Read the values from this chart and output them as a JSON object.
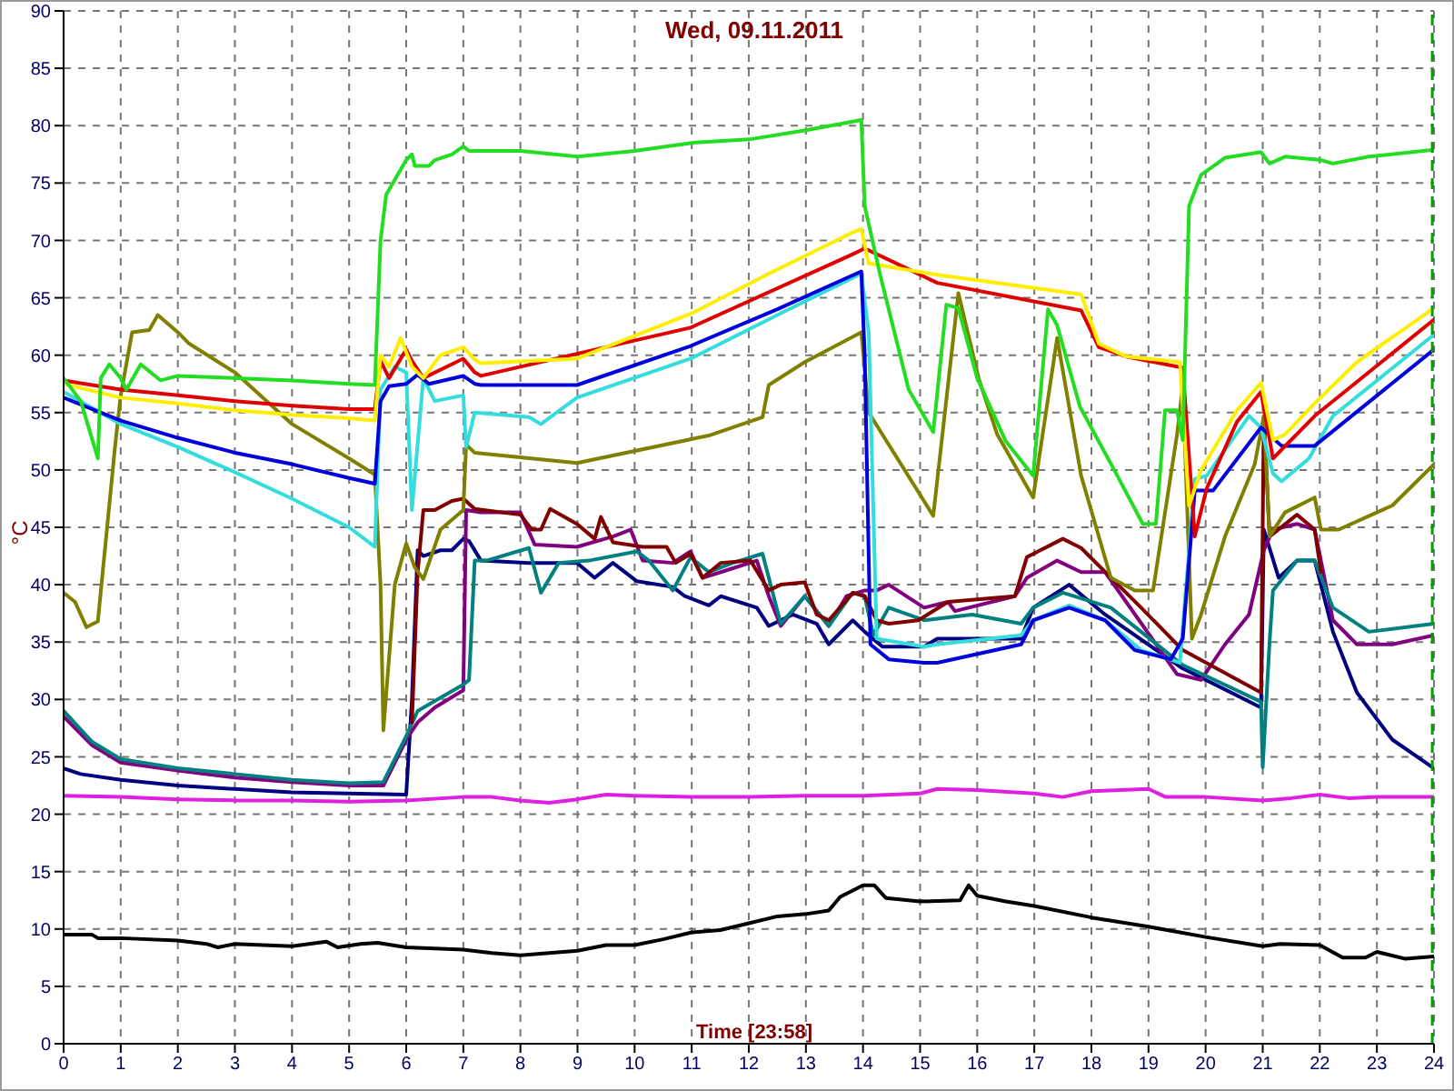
{
  "chart_data": {
    "type": "line",
    "title": "Wed, 09.11.2011",
    "xlabel": "Time [23:58]",
    "ylabel": "°C",
    "xlim": [
      0,
      24
    ],
    "xticks": [
      0,
      1,
      2,
      3,
      4,
      5,
      6,
      7,
      8,
      9,
      10,
      11,
      12,
      13,
      14,
      15,
      16,
      17,
      18,
      19,
      20,
      21,
      22,
      23,
      24
    ],
    "ylim": [
      0,
      90
    ],
    "yticks": [
      0,
      5,
      10,
      15,
      20,
      25,
      30,
      35,
      40,
      45,
      50,
      55,
      60,
      65,
      70,
      75,
      80,
      85,
      90
    ],
    "grid": true,
    "ref_lines": [
      {
        "axis": "x",
        "value": 23.97,
        "color": "#00a000",
        "line_style": "dashed"
      }
    ],
    "series": [
      {
        "color": "#000000",
        "x": [
          0,
          0.5,
          0.6,
          1,
          2,
          2.5,
          2.7,
          3,
          3.5,
          4,
          4.6,
          4.8,
          5.2,
          5.5,
          6,
          7,
          7.5,
          8,
          8.5,
          9,
          9.5,
          10,
          10.5,
          11,
          11.5,
          12,
          12.5,
          13,
          13.4,
          13.6,
          14,
          14.2,
          14.4,
          15,
          15.7,
          15.85,
          16,
          16.5,
          17,
          18,
          19,
          20,
          21,
          21.3,
          22,
          22.4,
          22.8,
          23,
          23.5,
          24
        ],
        "values": [
          9.5,
          9.5,
          9.2,
          9.2,
          9,
          8.7,
          8.4,
          8.7,
          8.6,
          8.5,
          8.9,
          8.4,
          8.7,
          8.8,
          8.4,
          8.2,
          7.9,
          7.7,
          7.9,
          8.1,
          8.6,
          8.6,
          9.1,
          9.7,
          9.9,
          10.5,
          11.1,
          11.3,
          11.6,
          12.8,
          13.8,
          13.8,
          12.7,
          12.4,
          12.5,
          13.8,
          12.9,
          12.4,
          12,
          11,
          10.2,
          9.3,
          8.5,
          8.7,
          8.6,
          7.5,
          7.5,
          8,
          7.4,
          7.6
        ]
      },
      {
        "color": "#e020e0",
        "x": [
          0,
          1,
          2,
          3,
          4,
          5,
          6,
          7,
          7.5,
          8,
          8.5,
          9,
          9.5,
          10,
          11,
          12,
          13,
          14,
          15,
          15.3,
          16,
          17,
          17.5,
          18,
          19,
          19.3,
          20,
          21,
          21.5,
          22,
          22.5,
          23,
          24
        ],
        "values": [
          21.6,
          21.5,
          21.3,
          21.2,
          21.2,
          21.1,
          21.2,
          21.5,
          21.5,
          21.2,
          21,
          21.3,
          21.7,
          21.6,
          21.5,
          21.5,
          21.6,
          21.6,
          21.8,
          22.2,
          22.1,
          21.8,
          21.5,
          22,
          22.2,
          21.5,
          21.5,
          21.2,
          21.4,
          21.7,
          21.4,
          21.5,
          21.5
        ]
      },
      {
        "color": "#000080",
        "x": [
          0,
          0.3,
          1,
          2,
          3,
          4,
          5,
          6.0,
          6.1,
          6.2,
          6.3,
          6.6,
          6.8,
          7.0,
          7.1,
          7.31,
          8.15,
          8.99,
          9.3,
          9.62,
          10.04,
          10.67,
          10.88,
          11.3,
          11.51,
          12.14,
          12.35,
          12.77,
          13.19,
          13.4,
          13.82,
          14.03,
          14.34,
          15.07,
          15.3,
          16.77,
          16.98,
          17.61,
          18.24,
          19.6,
          20.97,
          21.02,
          21.28,
          21.6,
          21.91,
          22.23,
          22.65,
          23.27,
          24
        ],
        "values": [
          24,
          23.5,
          23,
          22.5,
          22.2,
          21.9,
          21.8,
          21.7,
          30,
          43,
          42.5,
          43,
          43,
          44,
          43.8,
          42.1,
          41.9,
          41.9,
          40.6,
          41.9,
          40.3,
          39.8,
          39,
          38.2,
          39,
          38,
          36.4,
          37.4,
          36.6,
          34.8,
          36.9,
          35.9,
          34.6,
          34.6,
          35.3,
          35.3,
          38,
          40,
          37.4,
          32.7,
          29.3,
          44.8,
          40.6,
          42.1,
          42.1,
          35.9,
          30.6,
          26.5,
          24
        ]
      },
      {
        "color": "#800080",
        "x": [
          0,
          0.5,
          1,
          2,
          3,
          4,
          5,
          5.6,
          6.0,
          6.2,
          6.5,
          7,
          7.05,
          7.3,
          8.0,
          8.25,
          8.99,
          9.62,
          9.93,
          10.14,
          10.67,
          10.98,
          11.19,
          11.51,
          12.14,
          12.35,
          12.56,
          12.98,
          13.4,
          13.71,
          14.03,
          14.24,
          14.45,
          15.07,
          15.49,
          15.61,
          16.66,
          16.87,
          17.4,
          17.82,
          18.24,
          19.5,
          19.92,
          20.34,
          20.76,
          21.02,
          21.18,
          21.6,
          21.91,
          22.23,
          22.65,
          23.27,
          24
        ],
        "values": [
          28.5,
          26,
          24.5,
          23.8,
          23.2,
          22.8,
          22.5,
          22.5,
          26.5,
          28,
          29.3,
          30.8,
          46.5,
          46.3,
          46.3,
          43.5,
          43.3,
          44.2,
          44.8,
          42.1,
          41.9,
          42.9,
          40.6,
          41.1,
          42.1,
          39,
          36.4,
          39,
          36.4,
          39,
          39.5,
          39.5,
          40,
          38,
          38.5,
          37.7,
          39,
          40.6,
          42.1,
          41.1,
          41.1,
          32.2,
          31.7,
          34.8,
          37.4,
          43,
          44.8,
          45.3,
          44.8,
          36.9,
          34.8,
          34.8,
          35.6
        ]
      },
      {
        "color": "#008080",
        "x": [
          0,
          0.5,
          1,
          2,
          3,
          4,
          5,
          5.6,
          6.0,
          6.2,
          7,
          7.1,
          7.2,
          7.41,
          8.15,
          8.36,
          8.67,
          9.2,
          10.04,
          10.25,
          10.67,
          10.98,
          11.3,
          11.72,
          12.24,
          12.56,
          12.98,
          13.4,
          13.82,
          14.03,
          14.18,
          14.45,
          15.07,
          15.91,
          16.77,
          16.98,
          17.5,
          18.34,
          19.6,
          20.97,
          21.0,
          21.12,
          21.18,
          21.6,
          21.91,
          22.23,
          22.86,
          24
        ],
        "values": [
          29,
          26.3,
          24.8,
          24,
          23.5,
          23,
          22.7,
          22.8,
          26.8,
          29,
          31.3,
          31.7,
          42.1,
          42.1,
          43.2,
          39.3,
          41.9,
          42.1,
          42.9,
          42.1,
          39.5,
          42.4,
          41.1,
          41.9,
          42.7,
          36.6,
          39,
          36.4,
          39.3,
          39,
          35.6,
          38,
          36.9,
          37.4,
          36.6,
          38,
          39.3,
          38,
          33,
          29.8,
          24.1,
          35,
          39.5,
          42.1,
          42.1,
          38,
          35.9,
          36.6
        ]
      },
      {
        "color": "#800000",
        "x": [
          6.1,
          6.2,
          6.3,
          6.5,
          6.8,
          7.0,
          7.2,
          8.0,
          8.2,
          8.36,
          8.52,
          8.99,
          9.3,
          9.41,
          9.62,
          10.14,
          10.56,
          10.72,
          10.98,
          11.19,
          11.51,
          12.03,
          12.35,
          12.56,
          12.98,
          13.19,
          13.4,
          13.82,
          14.03,
          14.24,
          14.45,
          14.97,
          15.49,
          16.66,
          16.87,
          17.5,
          17.82,
          18.87,
          19.6,
          20.97,
          21.02,
          21.12,
          21.6,
          21.91,
          22.02
        ],
        "values": [
          28,
          41,
          46.5,
          46.5,
          47.3,
          47.5,
          46.6,
          46.1,
          44.8,
          44.8,
          46.6,
          45.3,
          44,
          45.9,
          43.7,
          43.3,
          43.3,
          41.9,
          42.7,
          40.6,
          41.9,
          42.1,
          39.5,
          40,
          40.2,
          37.4,
          36.9,
          39.3,
          39,
          36.9,
          36.6,
          36.9,
          38.5,
          39,
          42.4,
          44,
          43.2,
          38,
          34.3,
          30.6,
          54.7,
          44.2,
          46.1,
          44.8,
          41.1
        ]
      },
      {
        "color": "#808000",
        "x": [
          0,
          0.2,
          0.4,
          0.6,
          0.9,
          1.0,
          1.2,
          1.5,
          1.65,
          2,
          2.2,
          3,
          4,
          5,
          5.45,
          5.55,
          5.6,
          5.8,
          6.0,
          6.15,
          6.3,
          6.6,
          7.0,
          7.05,
          7.2,
          8.99,
          11.3,
          12.24,
          12.35,
          12.98,
          13.82,
          13.97,
          14.1,
          15.23,
          15.67,
          16.03,
          16.35,
          16.98,
          17.4,
          17.82,
          18.34,
          18.76,
          19.08,
          19.5,
          19.6,
          19.76,
          19.92,
          20.34,
          20.86,
          21.02,
          21.12,
          21.39,
          21.91,
          22.02,
          22.33,
          23.27,
          24
        ],
        "values": [
          39.3,
          38.5,
          36.3,
          36.8,
          52,
          56.5,
          62,
          62.2,
          63.5,
          62,
          61,
          58.5,
          54,
          51,
          49.6,
          40,
          27.3,
          40,
          43.6,
          41.5,
          40.5,
          44.8,
          46.5,
          52.2,
          51.5,
          50.6,
          53,
          54.6,
          57.4,
          59.4,
          61.6,
          62,
          55,
          46,
          65.4,
          57.9,
          53.1,
          47.6,
          61.5,
          49.5,
          40.6,
          39.5,
          39.5,
          53.1,
          57.3,
          35.3,
          37.4,
          44.2,
          50.5,
          54.7,
          44.2,
          46.3,
          47.6,
          44.8,
          44.8,
          46.9,
          50.5
        ]
      },
      {
        "color": "#33dddd",
        "x": [
          0,
          1,
          2,
          3,
          4,
          5,
          5.45,
          5.55,
          5.8,
          6.0,
          6.1,
          6.3,
          6.5,
          7,
          7.05,
          7.2,
          8.15,
          8.36,
          8.99,
          10.98,
          12.5,
          13.97,
          14.1,
          14.24,
          15.07,
          15.3,
          16.77,
          16.98,
          17.61,
          18.24,
          18.87,
          19.55,
          19.81,
          20.02,
          20.76,
          20.97,
          21.18,
          21.33,
          21.81,
          22.23,
          24
        ],
        "values": [
          56.8,
          54,
          52,
          49.8,
          47.5,
          45,
          43.3,
          57,
          59,
          58.5,
          46.5,
          58,
          56,
          56.5,
          52,
          55,
          54.6,
          54,
          56.3,
          59.7,
          63.5,
          67.1,
          62,
          35.3,
          34.6,
          34.8,
          35.6,
          36.9,
          38.2,
          36.9,
          34.3,
          33.2,
          49.2,
          49.5,
          54.7,
          53.7,
          49.7,
          49,
          51,
          54.7,
          61.8
        ]
      },
      {
        "color": "#0000dd",
        "x": [
          0,
          1,
          2,
          3,
          4,
          5,
          5.45,
          5.55,
          5.7,
          6,
          6.2,
          6.4,
          7,
          7.2,
          7.31,
          8.99,
          10.98,
          12.5,
          13.97,
          14.03,
          14.13,
          14.45,
          15.07,
          15.3,
          16.77,
          16.98,
          17.61,
          18.24,
          18.76,
          19.39,
          19.6,
          19.81,
          20.13,
          20.97,
          21.33,
          21.91,
          24
        ],
        "values": [
          56.3,
          54.3,
          52.8,
          51.5,
          50.5,
          49.3,
          48.8,
          56,
          57.3,
          57.5,
          58.3,
          57.5,
          58.2,
          57.5,
          57.4,
          57.4,
          60.8,
          64,
          67.3,
          60,
          34.8,
          33.5,
          33.2,
          33.2,
          34.8,
          36.9,
          38,
          36.9,
          34.3,
          33.5,
          35.3,
          48.2,
          48.2,
          53.7,
          52.1,
          52.1,
          60.5
        ]
      },
      {
        "color": "#e00000",
        "x": [
          0,
          1,
          2,
          3,
          4,
          5,
          5.45,
          5.55,
          5.7,
          6,
          6.1,
          6.3,
          7,
          7.2,
          7.31,
          10.98,
          13.82,
          14.03,
          15.3,
          17.82,
          18.13,
          18.6,
          19.6,
          19.81,
          20.02,
          20.55,
          20.97,
          21.18,
          21.91,
          24
        ],
        "values": [
          57.8,
          57,
          56.5,
          56,
          55.6,
          55.3,
          55.3,
          59.5,
          58,
          60.5,
          59.5,
          58,
          59.7,
          58.5,
          58.2,
          62.4,
          68.8,
          69.3,
          66.3,
          63.9,
          60.7,
          59.9,
          58.9,
          44.2,
          48.4,
          54.2,
          56.8,
          51,
          54.7,
          63.1
        ]
      },
      {
        "color": "#ffee00",
        "x": [
          0,
          1,
          2,
          3,
          4,
          5,
          5.45,
          5.55,
          5.7,
          5.9,
          6.1,
          6.3,
          6.6,
          7,
          7.2,
          7.31,
          8.99,
          10.98,
          12.35,
          13.82,
          13.97,
          14.1,
          15.3,
          17.82,
          18.13,
          18.6,
          19.55,
          19.71,
          19.92,
          20.55,
          20.97,
          21.18,
          21.39,
          21.91,
          22.65,
          24
        ],
        "values": [
          57.5,
          56.3,
          55.8,
          55.2,
          54.8,
          54.5,
          54.3,
          60,
          59,
          61.5,
          59,
          58,
          60,
          60.7,
          59.6,
          59.3,
          59.7,
          63.6,
          67.1,
          70.7,
          71,
          68,
          67,
          65.3,
          61,
          59.9,
          59.4,
          46.9,
          50,
          55.2,
          57.6,
          52.6,
          53.1,
          55.8,
          59.4,
          64.1
        ]
      },
      {
        "color": "#22dd22",
        "x": [
          0,
          0.3,
          0.6,
          0.65,
          0.8,
          1.0,
          1.1,
          1.35,
          1.7,
          2,
          3,
          4,
          5,
          5.45,
          5.55,
          5.65,
          6,
          6.1,
          6.15,
          6.4,
          6.5,
          6.8,
          7,
          7.1,
          8,
          9,
          10,
          11,
          12,
          13,
          13.97,
          14.03,
          14.3,
          14.8,
          15.23,
          15.46,
          15.67,
          16.0,
          16.5,
          16.98,
          17.24,
          17.4,
          17.8,
          18.4,
          18.9,
          19.13,
          19.29,
          19.5,
          19.6,
          19.71,
          19.92,
          20.34,
          20.97,
          21.12,
          21.39,
          22.02,
          22.23,
          22.86,
          24
        ],
        "values": [
          58,
          56,
          51,
          58,
          59.2,
          58,
          57,
          59.2,
          57.8,
          58.2,
          58,
          57.8,
          57.5,
          57.4,
          70,
          74,
          77,
          77.5,
          76.5,
          76.5,
          77,
          77.5,
          78.2,
          77.8,
          77.8,
          77.3,
          77.8,
          78.5,
          78.8,
          79.6,
          80.5,
          73,
          67,
          57,
          53.3,
          64.4,
          64.1,
          58,
          52.5,
          49.5,
          64,
          62.6,
          55.5,
          50,
          45.3,
          45.3,
          55.2,
          55.2,
          52.6,
          73,
          75.7,
          77.2,
          77.7,
          76.7,
          77.3,
          77,
          76.7,
          77.3,
          77.9
        ]
      }
    ]
  }
}
